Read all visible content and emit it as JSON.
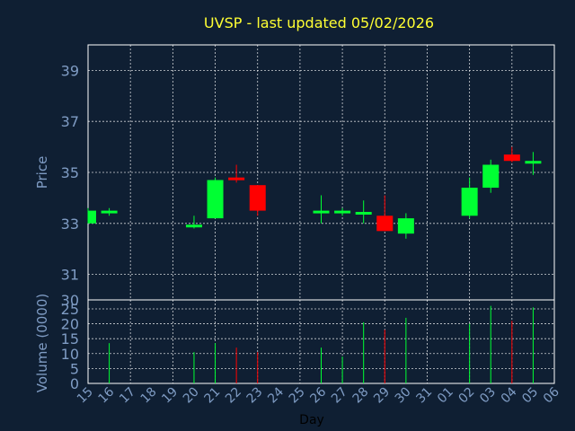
{
  "chart_data": {
    "type": "candlestick",
    "title": "UVSP - last updated 05/02/2026",
    "xlabel": "Day",
    "price_panel": {
      "ylabel": "Price",
      "ylim": [
        30,
        40
      ],
      "yticks": [
        31,
        33,
        35,
        37,
        39
      ],
      "grid": true
    },
    "volume_panel": {
      "ylabel": "Volume (0000)",
      "ylim": [
        0,
        28
      ],
      "yticks": [
        0,
        5,
        10,
        15,
        20,
        25
      ],
      "grid": true
    },
    "x_ticks": [
      "15",
      "16",
      "17",
      "18",
      "19",
      "20",
      "21",
      "22",
      "23",
      "24",
      "25",
      "26",
      "27",
      "28",
      "29",
      "30",
      "31",
      "01",
      "02",
      "03",
      "04",
      "05",
      "06"
    ],
    "series": [
      {
        "day": "15",
        "open": 33.0,
        "high": 33.6,
        "low": 33.0,
        "close": 33.5,
        "volume": 0
      },
      {
        "day": "16",
        "open": 33.4,
        "high": 33.6,
        "low": 33.3,
        "close": 33.5,
        "volume": 13.5
      },
      {
        "day": "20",
        "open": 32.9,
        "high": 33.3,
        "low": 32.8,
        "close": 32.95,
        "volume": 10.5
      },
      {
        "day": "21",
        "open": 33.2,
        "high": 34.8,
        "low": 33.2,
        "close": 34.7,
        "volume": 13.5
      },
      {
        "day": "22",
        "open": 34.8,
        "high": 35.3,
        "low": 34.6,
        "close": 34.75,
        "volume": 12.0
      },
      {
        "day": "23",
        "open": 34.5,
        "high": 34.5,
        "low": 33.3,
        "close": 33.5,
        "volume": 10.5
      },
      {
        "day": "26",
        "open": 33.4,
        "high": 34.1,
        "low": 33.0,
        "close": 33.5,
        "volume": 12.0
      },
      {
        "day": "27",
        "open": 33.4,
        "high": 33.6,
        "low": 33.3,
        "close": 33.5,
        "volume": 9.0
      },
      {
        "day": "28",
        "open": 33.4,
        "high": 33.9,
        "low": 33.0,
        "close": 33.45,
        "volume": 20.5
      },
      {
        "day": "29",
        "open": 33.3,
        "high": 34.1,
        "low": 32.7,
        "close": 32.7,
        "volume": 18.0
      },
      {
        "day": "30",
        "open": 32.6,
        "high": 33.4,
        "low": 32.4,
        "close": 33.2,
        "volume": 22.0
      },
      {
        "day": "02",
        "open": 33.3,
        "high": 34.8,
        "low": 33.2,
        "close": 34.4,
        "volume": 20.0
      },
      {
        "day": "03",
        "open": 34.4,
        "high": 35.5,
        "low": 34.2,
        "close": 35.3,
        "volume": 26.0
      },
      {
        "day": "04",
        "open": 35.7,
        "high": 36.0,
        "low": 35.4,
        "close": 35.45,
        "volume": 21.0
      },
      {
        "day": "05",
        "open": 35.35,
        "high": 35.8,
        "low": 34.9,
        "close": 35.45,
        "volume": 25.5
      }
    ]
  },
  "colors": {
    "background": "#0f1f33",
    "grid": "#ffffff",
    "up": "#00ff33",
    "down": "#ff0000",
    "title": "#ffff33",
    "axis_text": "#7f9cc4",
    "frame": "#ffffff"
  }
}
